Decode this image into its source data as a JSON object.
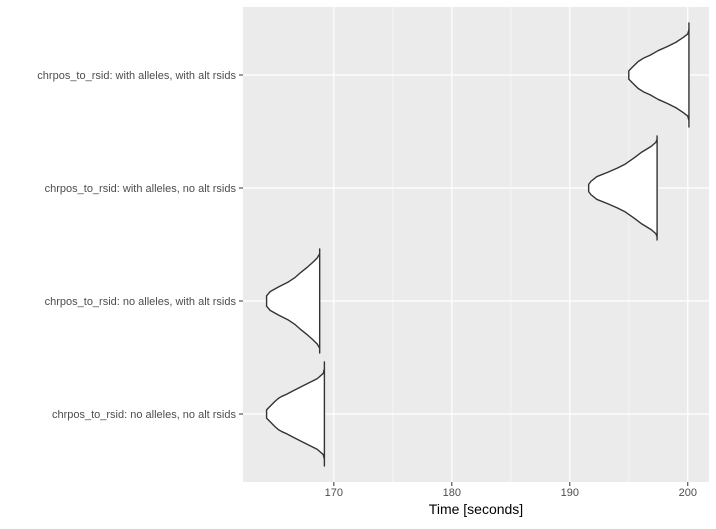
{
  "chart_data": {
    "type": "violin",
    "title": "",
    "xlabel": "Time [seconds]",
    "ylabel": "",
    "xlim": [
      162.3,
      201.8
    ],
    "xticks": [
      170,
      180,
      190,
      200
    ],
    "grid": true,
    "colors": {
      "panel_background": "#ebebeb",
      "grid_major": "#ffffff",
      "violin_fill": "#ffffff",
      "violin_stroke": "#333333",
      "axis_text": "#4d4d4d",
      "axis_title": "#000000"
    },
    "categories": [
      "chrpos_to_rsid: with alleles, with alt rsids",
      "chrpos_to_rsid: with alleles, no alt rsids",
      "chrpos_to_rsid: no alleles, with alt rsids",
      "chrpos_to_rsid: no alleles, no alt rsids"
    ],
    "series": [
      {
        "category": "chrpos_to_rsid: with alleles, with alt rsids",
        "min": 195.0,
        "max": 200.1,
        "profile": [
          [
            195.0,
            0.0
          ],
          [
            195.0,
            0.08
          ],
          [
            195.3,
            0.15
          ],
          [
            195.8,
            0.26
          ],
          [
            196.3,
            0.33
          ],
          [
            196.8,
            0.38
          ],
          [
            197.5,
            0.47
          ],
          [
            198.3,
            0.55
          ],
          [
            199.0,
            0.63
          ],
          [
            199.6,
            0.72
          ],
          [
            200.0,
            0.79
          ],
          [
            200.1,
            0.88
          ],
          [
            200.1,
            1.0
          ]
        ]
      },
      {
        "category": "chrpos_to_rsid: with alleles, no alt rsids",
        "min": 191.6,
        "max": 197.4,
        "profile": [
          [
            191.6,
            0.0
          ],
          [
            191.6,
            0.07
          ],
          [
            191.8,
            0.13
          ],
          [
            192.3,
            0.22
          ],
          [
            193.2,
            0.3
          ],
          [
            194.0,
            0.38
          ],
          [
            194.7,
            0.46
          ],
          [
            195.4,
            0.57
          ],
          [
            196.1,
            0.69
          ],
          [
            196.9,
            0.8
          ],
          [
            197.3,
            0.88
          ],
          [
            197.4,
            0.94
          ],
          [
            197.4,
            1.0
          ]
        ]
      },
      {
        "category": "chrpos_to_rsid: no alleles, with alt rsids",
        "min": 164.3,
        "max": 168.8,
        "profile": [
          [
            164.3,
            0.0
          ],
          [
            164.3,
            0.1
          ],
          [
            164.6,
            0.18
          ],
          [
            165.3,
            0.27
          ],
          [
            166.1,
            0.36
          ],
          [
            166.7,
            0.45
          ],
          [
            167.2,
            0.55
          ],
          [
            167.7,
            0.64
          ],
          [
            168.2,
            0.74
          ],
          [
            168.6,
            0.83
          ],
          [
            168.8,
            0.91
          ],
          [
            168.8,
            1.0
          ]
        ]
      },
      {
        "category": "chrpos_to_rsid: no alleles, no alt rsids",
        "min": 164.3,
        "max": 169.2,
        "profile": [
          [
            164.3,
            0.0
          ],
          [
            164.3,
            0.08
          ],
          [
            164.6,
            0.15
          ],
          [
            165.0,
            0.24
          ],
          [
            165.3,
            0.3
          ],
          [
            165.6,
            0.34
          ],
          [
            166.0,
            0.38
          ],
          [
            166.5,
            0.44
          ],
          [
            167.1,
            0.51
          ],
          [
            167.9,
            0.6
          ],
          [
            168.6,
            0.68
          ],
          [
            169.1,
            0.78
          ],
          [
            169.2,
            0.87
          ],
          [
            169.2,
            1.0
          ]
        ]
      }
    ]
  }
}
